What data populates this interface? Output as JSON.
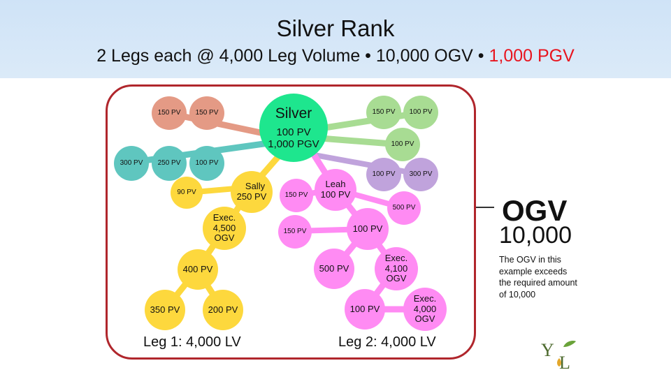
{
  "title": "Silver Rank",
  "subtitle": {
    "main": "2 Legs each @ 4,000 Leg Volume • 10,000 OGV • ",
    "highlight": "1,000 PGV"
  },
  "colors": {
    "header_bg": "#d5e7f8",
    "frame": "#b0262c",
    "highlight": "#e8141e",
    "salmon": "#e49a85",
    "teal": "#5fc6bf",
    "green": "#a8dc93",
    "bright_green": "#1ee68e",
    "yellow": "#fdd83d",
    "magenta": "#ff8bf3",
    "lavender": "#c0a3dc"
  },
  "center": {
    "name": "Silver",
    "pv": "100 PV",
    "pgv": "1,000 PGV"
  },
  "nodes": {
    "top_left_1": "150 PV",
    "top_left_2": "150 PV",
    "left_1": "300 PV",
    "left_2": "250 PV",
    "left_3": "100 PV",
    "top_right_1": "150 PV",
    "top_right_2": "100 PV",
    "right_1": "100 PV",
    "right_2": "100 PV",
    "right_3": "300 PV",
    "right_4": "500 PV",
    "mid_150a": "150 PV",
    "mid_150b": "150 PV",
    "small_90": "90 PV"
  },
  "sally": {
    "name": "Sally",
    "pv": "250 PV"
  },
  "leah": {
    "name": "Leah",
    "pv": "100 PV"
  },
  "leg1": {
    "exec": {
      "title": "Exec.",
      "volume": "4,500",
      "unit": "OGV"
    },
    "n400": "400 PV",
    "n350": "350 PV",
    "n200": "200 PV",
    "label": "Leg 1: 4,000 LV"
  },
  "leg2": {
    "n100a": "100 PV",
    "n500": "500 PV",
    "exec1": {
      "title": "Exec.",
      "volume": "4,100",
      "unit": "OGV"
    },
    "n100b": "100 PV",
    "exec2": {
      "title": "Exec.",
      "volume": "4,000",
      "unit": "OGV"
    },
    "label": "Leg 2: 4,000 LV"
  },
  "ogv": {
    "label": "OGV",
    "value": "10,000",
    "note": "The OGV in this example exceeds the required amount of 10,000"
  },
  "logo": {
    "letters": "YL"
  }
}
